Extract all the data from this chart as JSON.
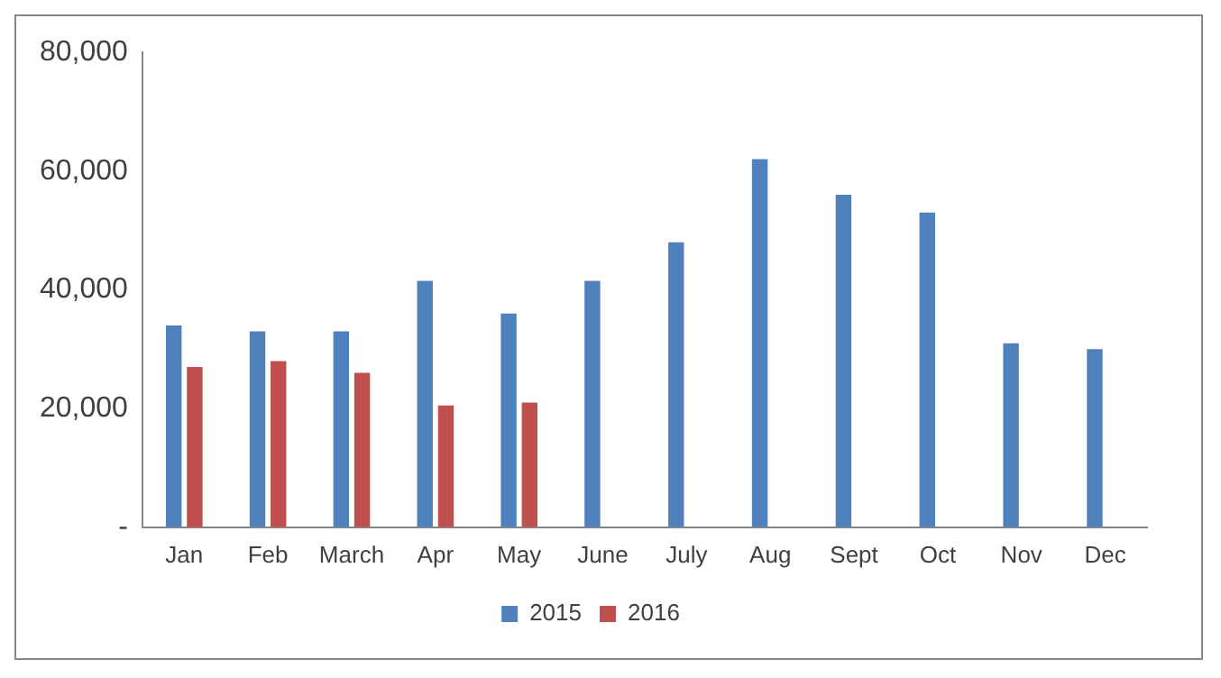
{
  "chart_data": {
    "type": "bar",
    "categories": [
      "Jan",
      "Feb",
      "March",
      "Apr",
      "May",
      "June",
      "July",
      "Aug",
      "Sept",
      "Oct",
      "Nov",
      "Dec"
    ],
    "series": [
      {
        "name": "2015",
        "color": "#4f81bd",
        "values": [
          34000,
          33000,
          33000,
          41500,
          36000,
          41500,
          48000,
          62000,
          56000,
          53000,
          31000,
          30000
        ]
      },
      {
        "name": "2016",
        "color": "#c0504d",
        "values": [
          27000,
          28000,
          26000,
          20500,
          21000,
          null,
          null,
          null,
          null,
          null,
          null,
          null
        ]
      }
    ],
    "ylim": [
      0,
      80000
    ],
    "yticks": [
      {
        "value": 0,
        "label": "-"
      },
      {
        "value": 20000,
        "label": "20,000"
      },
      {
        "value": 40000,
        "label": "40,000"
      },
      {
        "value": 60000,
        "label": "60,000"
      },
      {
        "value": 80000,
        "label": "80,000"
      }
    ],
    "grid": false,
    "legend": "bottom"
  }
}
